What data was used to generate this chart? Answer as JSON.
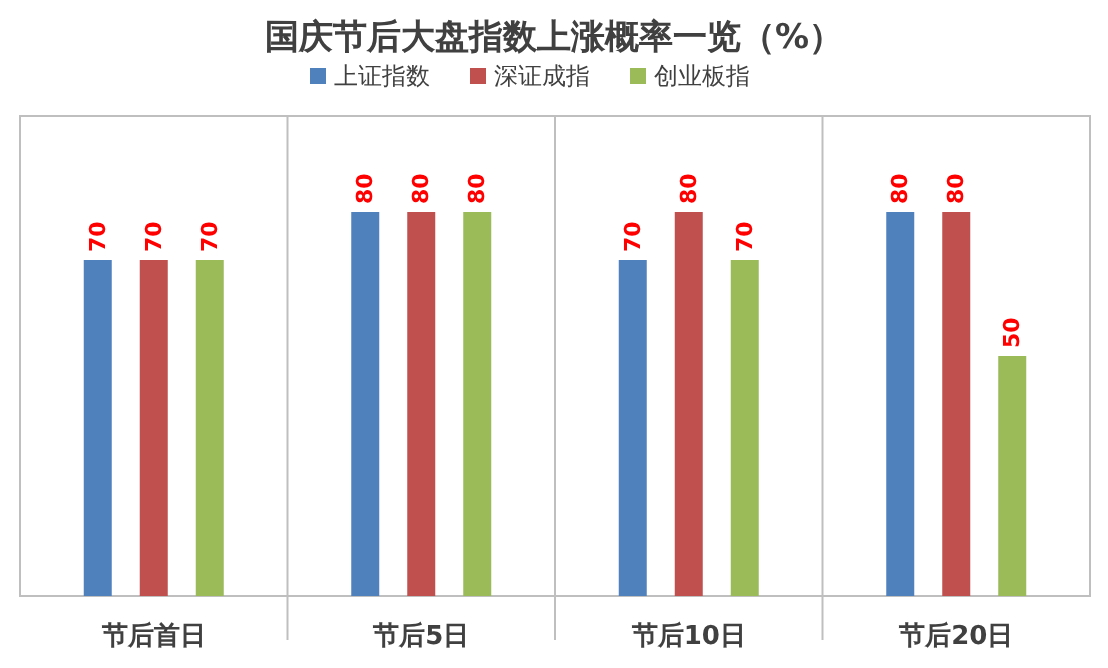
{
  "chart_data": {
    "type": "bar",
    "title": "国庆节后大盘指数上涨概率一览（%）",
    "categories": [
      "节后首日",
      "节后5日",
      "节后10日",
      "节后20日"
    ],
    "series": [
      {
        "name": "上证指数",
        "color": "#4f81bd",
        "values": [
          70,
          80,
          70,
          80
        ]
      },
      {
        "name": "深证成指",
        "color": "#c0504d",
        "values": [
          70,
          80,
          80,
          80
        ]
      },
      {
        "name": "创业板指",
        "color": "#9bbb59",
        "values": [
          70,
          80,
          70,
          50
        ]
      }
    ],
    "ylim": [
      0,
      100
    ],
    "data_labels": true,
    "legend": "top",
    "tick_labels": "x"
  }
}
